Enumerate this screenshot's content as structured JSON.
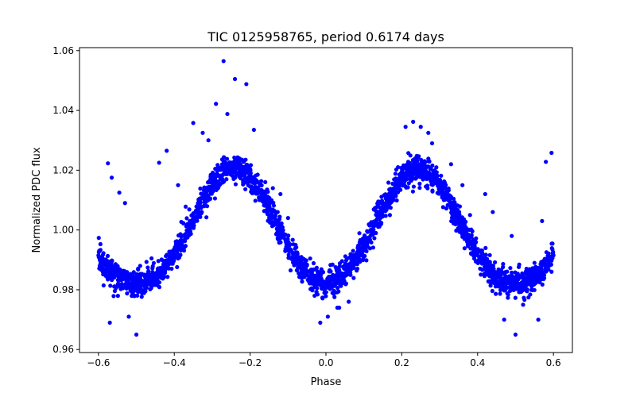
{
  "chart_data": {
    "type": "scatter",
    "title": "TIC 0125958765, period 0.6174 days",
    "xlabel": "Phase",
    "ylabel": "Normalized PDC flux",
    "xlim": [
      -0.65,
      0.65
    ],
    "ylim": [
      0.959,
      1.061
    ],
    "xticks": [
      -0.6,
      -0.4,
      -0.2,
      0.0,
      0.2,
      0.4,
      0.6
    ],
    "xtick_labels": [
      "−0.6",
      "−0.4",
      "−0.2",
      "0.0",
      "0.2",
      "0.4",
      "0.6"
    ],
    "yticks": [
      0.96,
      0.98,
      1.0,
      1.02,
      1.04,
      1.06
    ],
    "ytick_labels": [
      "0.96",
      "0.98",
      "1.00",
      "1.02",
      "1.04",
      "1.06"
    ],
    "grid": false,
    "legend": "none",
    "marker_color": "#0000ff",
    "series": [
      {
        "x": [
          -0.6,
          -0.58,
          -0.56,
          -0.54,
          -0.52,
          -0.5,
          -0.48,
          -0.46,
          -0.44,
          -0.42,
          -0.4,
          -0.38,
          -0.36,
          -0.34,
          -0.32,
          -0.3,
          -0.28,
          -0.26,
          -0.24,
          -0.22,
          -0.2,
          -0.18,
          -0.16,
          -0.14,
          -0.12,
          -0.1,
          -0.08,
          -0.06,
          -0.04,
          -0.02,
          0.0,
          0.02,
          0.04,
          0.06,
          0.08,
          0.1,
          0.12,
          0.14,
          0.16,
          0.18,
          0.2,
          0.22,
          0.24,
          0.26,
          0.28,
          0.3,
          0.32,
          0.34,
          0.36,
          0.38,
          0.4,
          0.42,
          0.44,
          0.46,
          0.48,
          0.5,
          0.52,
          0.54,
          0.56,
          0.58,
          0.6
        ],
        "y": [
          0.9915,
          0.988,
          0.9852,
          0.9834,
          0.9823,
          0.9819,
          0.9822,
          0.9833,
          0.9852,
          0.988,
          0.9917,
          0.9961,
          1.001,
          1.006,
          1.0107,
          1.0148,
          1.018,
          1.02,
          1.0206,
          1.0198,
          1.0175,
          1.014,
          1.0095,
          1.0045,
          0.9993,
          0.9945,
          0.9903,
          0.9869,
          0.9845,
          0.983,
          0.9825,
          0.983,
          0.9845,
          0.9869,
          0.9903,
          0.9945,
          0.9993,
          1.0045,
          1.0095,
          1.014,
          1.0175,
          1.0198,
          1.0206,
          1.02,
          1.018,
          1.0148,
          1.0107,
          1.006,
          1.001,
          0.9961,
          0.9917,
          0.988,
          0.9852,
          0.9833,
          0.9822,
          0.9819,
          0.9823,
          0.9834,
          0.9852,
          0.988,
          0.9915
        ]
      },
      {
        "x": [
          -0.27,
          -0.24,
          -0.21,
          -0.29,
          -0.26,
          -0.19,
          -0.325,
          -0.31,
          -0.35,
          -0.575,
          -0.565,
          -0.545,
          -0.53,
          -0.49,
          -0.46,
          -0.44,
          -0.42,
          -0.39,
          -0.37,
          -0.18,
          -0.16,
          -0.14,
          -0.12,
          -0.1,
          -0.08,
          -0.06,
          -0.03,
          0.03,
          0.06,
          0.09,
          0.17,
          0.19,
          0.21,
          0.23,
          0.25,
          0.27,
          0.28,
          0.33,
          0.36,
          0.38,
          0.42,
          0.44,
          0.49,
          0.52,
          0.55,
          0.57,
          0.58,
          0.595,
          -0.5,
          -0.52,
          -0.015,
          0.005,
          0.035,
          0.47,
          0.5,
          -0.57,
          0.56
        ],
        "y": [
          1.0565,
          1.0505,
          1.0488,
          1.0422,
          1.0388,
          1.0335,
          1.0325,
          1.03,
          1.0358,
          1.0223,
          1.0175,
          1.0125,
          1.009,
          0.988,
          0.9905,
          1.0225,
          1.0265,
          1.015,
          1.0078,
          1.0185,
          1.016,
          1.014,
          1.012,
          1.004,
          0.995,
          0.986,
          0.978,
          0.974,
          0.976,
          0.99,
          1.01,
          1.021,
          1.0345,
          1.0362,
          1.0345,
          1.0325,
          1.029,
          1.022,
          1.015,
          1.005,
          1.012,
          1.006,
          0.998,
          0.975,
          0.989,
          1.003,
          1.0228,
          1.0258,
          0.965,
          0.971,
          0.969,
          0.971,
          0.974,
          0.97,
          0.965,
          0.969,
          0.97
        ]
      }
    ]
  }
}
